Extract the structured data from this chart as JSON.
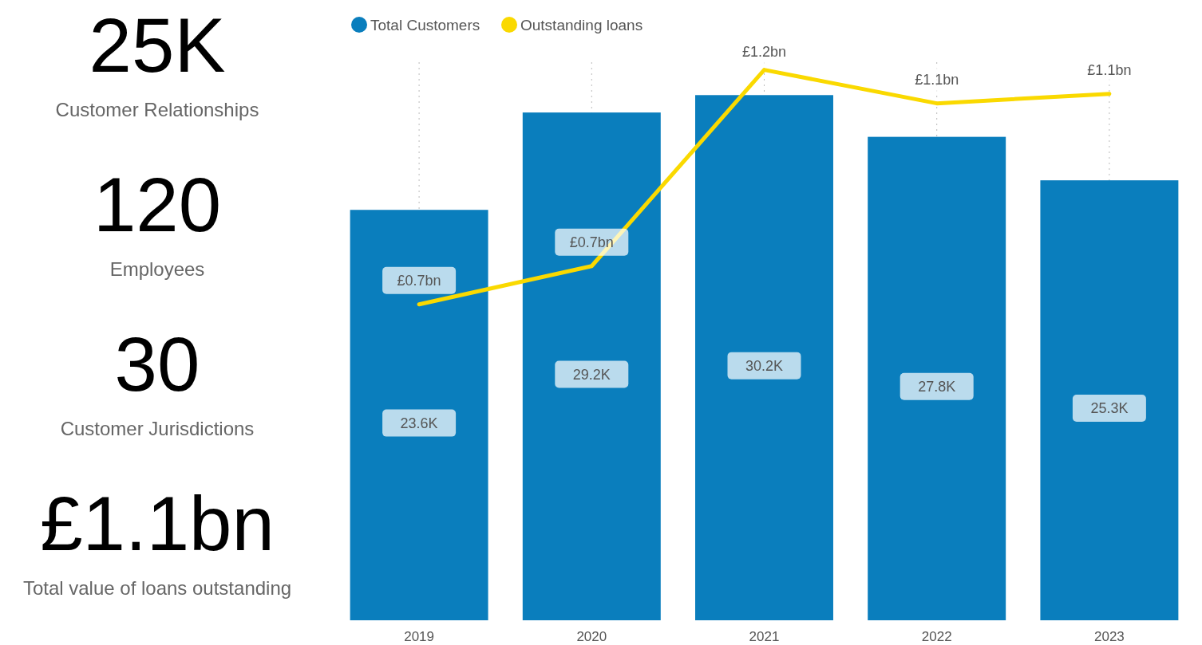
{
  "chart_data": [
    {
      "type": "other",
      "annotations": [
        "25K",
        "Customer Relationships",
        "120",
        "Employees",
        "30",
        "Customer Jurisdictions",
        "£1.1bn",
        "Total value of loans outstanding"
      ]
    },
    {
      "type": "bar",
      "categories": [
        "2019",
        "2020",
        "2021",
        "2022",
        "2023"
      ],
      "grid": "x",
      "legend": "top left",
      "series": [
        {
          "name": "Total Customers",
          "type": "bar",
          "color": "#0a7ebd",
          "values": [
            23.6,
            29.2,
            30.2,
            27.8,
            25.3
          ],
          "value_labels": [
            "23.6K",
            "29.2K",
            "30.2K",
            "27.8K",
            "25.3K"
          ]
        },
        {
          "name": "Outstanding loans",
          "type": "line",
          "axis": "y2",
          "color": "#fad900",
          "values": [
            0.66,
            0.74,
            1.15,
            1.08,
            1.1
          ],
          "value_labels": [
            "£0.7bn",
            "£0.7bn",
            "£1.2bn",
            "£1.1bn",
            "£1.1bn"
          ]
        }
      ]
    }
  ]
}
